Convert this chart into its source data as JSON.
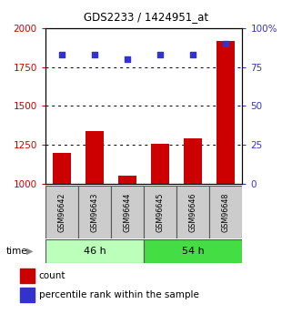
{
  "title": "GDS2233 / 1424951_at",
  "categories": [
    "GSM96642",
    "GSM96643",
    "GSM96644",
    "GSM96645",
    "GSM96646",
    "GSM96648"
  ],
  "bar_values": [
    1200,
    1340,
    1050,
    1255,
    1290,
    1920
  ],
  "dot_values": [
    83,
    83,
    80,
    83,
    83,
    90
  ],
  "bar_color": "#cc0000",
  "dot_color": "#3333cc",
  "ylim_left": [
    1000,
    2000
  ],
  "ylim_right": [
    0,
    100
  ],
  "yticks_left": [
    1000,
    1250,
    1500,
    1750,
    2000
  ],
  "yticks_right": [
    0,
    25,
    50,
    75,
    100
  ],
  "group_labels": [
    "46 h",
    "54 h"
  ],
  "group_color_light": "#bbffbb",
  "group_color_dark": "#44dd44",
  "sample_box_color": "#cccccc",
  "time_label": "time",
  "legend_bar_label": "count",
  "legend_dot_label": "percentile rank within the sample",
  "tick_label_color_left": "#cc0000",
  "tick_label_color_right": "#3333cc",
  "title_color": "#000000",
  "figsize": [
    3.21,
    3.45
  ],
  "dpi": 100
}
